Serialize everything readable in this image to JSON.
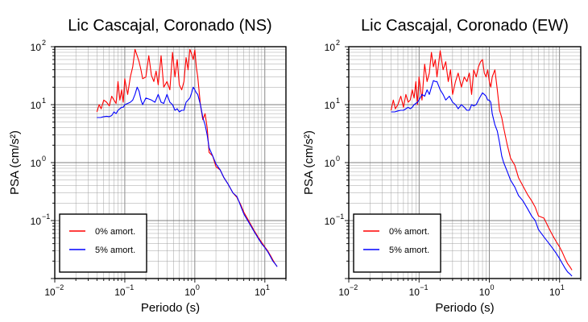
{
  "chart_data": [
    {
      "type": "line",
      "title": "Lic Cascajal, Coronado (NS)",
      "xlabel": "Periodo (s)",
      "ylabel": "PSA (cm/s²)",
      "xscale": "log",
      "yscale": "log",
      "xlim": [
        0.01,
        20
      ],
      "ylim": [
        0.01,
        100
      ],
      "grid": true,
      "legend_position": "bottom-left",
      "xticks": [
        {
          "base": "10",
          "exp": "−2",
          "value": 0.01
        },
        {
          "base": "10",
          "exp": "−1",
          "value": 0.1
        },
        {
          "base": "10",
          "exp": "0",
          "value": 1
        },
        {
          "base": "10",
          "exp": "1",
          "value": 10
        }
      ],
      "yticks": [
        {
          "base": "10",
          "exp": "2",
          "value": 100
        },
        {
          "base": "10",
          "exp": "1",
          "value": 10
        },
        {
          "base": "10",
          "exp": "0",
          "value": 1
        },
        {
          "base": "10",
          "exp": "−1",
          "value": 0.1
        }
      ],
      "series": [
        {
          "name": "0% amort.",
          "color": "#ff0000",
          "x": [
            0.04,
            0.043,
            0.046,
            0.05,
            0.055,
            0.06,
            0.065,
            0.07,
            0.075,
            0.08,
            0.085,
            0.09,
            0.095,
            0.1,
            0.11,
            0.12,
            0.13,
            0.14,
            0.15,
            0.16,
            0.17,
            0.18,
            0.2,
            0.22,
            0.24,
            0.26,
            0.28,
            0.3,
            0.33,
            0.36,
            0.4,
            0.44,
            0.48,
            0.52,
            0.56,
            0.6,
            0.65,
            0.7,
            0.75,
            0.8,
            0.85,
            0.9,
            0.95,
            1.0,
            1.05,
            1.1,
            1.2,
            1.3,
            1.4,
            1.5,
            1.6,
            1.8,
            2.0,
            2.3,
            2.6,
            3.0,
            3.5,
            4.0,
            4.5,
            5.0,
            6.0,
            7.0,
            8.0,
            9.0,
            10.0,
            11.0,
            12.0,
            13.0,
            14.0,
            15.0
          ],
          "y": [
            7.5,
            10,
            8.5,
            12,
            11,
            9.5,
            14,
            12,
            10.5,
            25,
            12,
            18,
            11,
            28,
            15,
            30,
            45,
            90,
            70,
            55,
            40,
            28,
            30,
            70,
            32,
            25,
            38,
            22,
            70,
            20,
            25,
            18,
            80,
            30,
            60,
            22,
            18,
            25,
            65,
            40,
            90,
            75,
            60,
            88,
            45,
            30,
            10,
            5.5,
            7,
            4,
            1.5,
            1.3,
            0.85,
            0.75,
            0.55,
            0.42,
            0.3,
            0.25,
            0.19,
            0.14,
            0.095,
            0.068,
            0.052,
            0.042,
            0.035,
            0.03,
            0.025,
            0.021,
            0.018,
            0.016
          ]
        },
        {
          "name": "5% amort.",
          "color": "#0000ff",
          "x": [
            0.04,
            0.045,
            0.05,
            0.055,
            0.06,
            0.065,
            0.07,
            0.075,
            0.08,
            0.085,
            0.09,
            0.095,
            0.1,
            0.11,
            0.12,
            0.13,
            0.14,
            0.15,
            0.16,
            0.17,
            0.18,
            0.2,
            0.22,
            0.24,
            0.27,
            0.3,
            0.33,
            0.36,
            0.4,
            0.44,
            0.48,
            0.52,
            0.56,
            0.6,
            0.65,
            0.7,
            0.75,
            0.8,
            0.85,
            0.9,
            0.95,
            1.0,
            1.05,
            1.1,
            1.2,
            1.3,
            1.4,
            1.5,
            1.6,
            1.8,
            2.0,
            2.3,
            2.6,
            3.0,
            3.5,
            4.0,
            4.5,
            5.0,
            6.0,
            7.0,
            8.0,
            9.0,
            10.0,
            11.0,
            12.0,
            13.0,
            14.0,
            15.0
          ],
          "y": [
            6,
            6,
            6.2,
            6.3,
            6.2,
            6.5,
            7.5,
            7,
            8,
            8.5,
            9,
            9,
            10,
            10.5,
            11,
            12,
            15,
            20,
            17,
            12,
            10,
            13,
            12.5,
            12,
            11,
            15,
            11,
            10.5,
            15,
            11,
            10,
            8,
            8.5,
            7.5,
            8,
            8,
            11,
            12,
            13,
            16,
            20,
            18,
            16,
            15,
            10,
            6,
            4.5,
            3,
            1.8,
            1.3,
            0.95,
            0.75,
            0.55,
            0.42,
            0.3,
            0.26,
            0.18,
            0.13,
            0.09,
            0.065,
            0.05,
            0.04,
            0.034,
            0.029,
            0.024,
            0.02,
            0.018,
            0.016
          ]
        }
      ]
    },
    {
      "type": "line",
      "title": "Lic Cascajal, Coronado (EW)",
      "xlabel": "Periodo (s)",
      "ylabel": "PSA (cm/s²)",
      "xscale": "log",
      "yscale": "log",
      "xlim": [
        0.01,
        20
      ],
      "ylim": [
        0.01,
        100
      ],
      "grid": true,
      "legend_position": "bottom-left",
      "xticks": [
        {
          "base": "10",
          "exp": "−2",
          "value": 0.01
        },
        {
          "base": "10",
          "exp": "−1",
          "value": 0.1
        },
        {
          "base": "10",
          "exp": "0",
          "value": 1
        },
        {
          "base": "10",
          "exp": "1",
          "value": 10
        }
      ],
      "yticks": [
        {
          "base": "10",
          "exp": "2",
          "value": 100
        },
        {
          "base": "10",
          "exp": "1",
          "value": 10
        },
        {
          "base": "10",
          "exp": "0",
          "value": 1
        },
        {
          "base": "10",
          "exp": "−1",
          "value": 0.1
        }
      ],
      "series": [
        {
          "name": "0% amort.",
          "color": "#ff0000",
          "x": [
            0.04,
            0.043,
            0.046,
            0.05,
            0.055,
            0.06,
            0.065,
            0.07,
            0.075,
            0.08,
            0.085,
            0.09,
            0.095,
            0.1,
            0.11,
            0.12,
            0.13,
            0.14,
            0.15,
            0.16,
            0.17,
            0.18,
            0.2,
            0.22,
            0.24,
            0.26,
            0.28,
            0.3,
            0.33,
            0.36,
            0.4,
            0.44,
            0.48,
            0.52,
            0.56,
            0.6,
            0.65,
            0.7,
            0.75,
            0.8,
            0.85,
            0.9,
            0.95,
            1.0,
            1.05,
            1.1,
            1.2,
            1.3,
            1.4,
            1.5,
            1.6,
            1.8,
            2.0,
            2.3,
            2.6,
            3.0,
            3.5,
            4.0,
            4.5,
            5.0,
            6.0,
            7.0,
            8.0,
            9.0,
            10.0,
            11.0,
            12.0,
            13.0,
            14.0,
            15.0
          ],
          "y": [
            8,
            12,
            8.5,
            10,
            14,
            9,
            15,
            11,
            12,
            18,
            13,
            25,
            10,
            30,
            12,
            50,
            25,
            35,
            80,
            45,
            60,
            30,
            85,
            40,
            55,
            25,
            40,
            15,
            25,
            35,
            20,
            30,
            25,
            35,
            15,
            40,
            30,
            45,
            55,
            60,
            35,
            30,
            40,
            25,
            20,
            30,
            40,
            18,
            8,
            6,
            4,
            2,
            1.2,
            0.9,
            0.55,
            0.4,
            0.28,
            0.22,
            0.17,
            0.12,
            0.11,
            0.075,
            0.055,
            0.043,
            0.035,
            0.028,
            0.022,
            0.018,
            0.016,
            0.014
          ]
        },
        {
          "name": "5% amort.",
          "color": "#0000ff",
          "x": [
            0.04,
            0.045,
            0.05,
            0.055,
            0.06,
            0.065,
            0.07,
            0.075,
            0.08,
            0.085,
            0.09,
            0.095,
            0.1,
            0.11,
            0.12,
            0.13,
            0.14,
            0.15,
            0.16,
            0.17,
            0.18,
            0.2,
            0.22,
            0.24,
            0.27,
            0.3,
            0.33,
            0.36,
            0.4,
            0.44,
            0.48,
            0.52,
            0.56,
            0.6,
            0.65,
            0.7,
            0.75,
            0.8,
            0.85,
            0.9,
            0.95,
            1.0,
            1.05,
            1.1,
            1.2,
            1.3,
            1.4,
            1.5,
            1.6,
            1.8,
            2.0,
            2.3,
            2.6,
            3.0,
            3.5,
            4.0,
            4.5,
            5.0,
            6.0,
            7.0,
            8.0,
            9.0,
            10.0,
            11.0,
            12.0,
            13.0,
            14.0,
            15.0
          ],
          "y": [
            7.5,
            7.5,
            7.8,
            8,
            8,
            8.5,
            9,
            8.5,
            9,
            10,
            10.5,
            11,
            12,
            15,
            14,
            18,
            15,
            20,
            26,
            25,
            25,
            18,
            15,
            12,
            14,
            11,
            10,
            8.5,
            10,
            9,
            8,
            8,
            10,
            9.5,
            10,
            12,
            14,
            16,
            15,
            14,
            12,
            12,
            11,
            7,
            4.5,
            3.5,
            2.2,
            1.3,
            1.0,
            0.7,
            0.5,
            0.38,
            0.27,
            0.22,
            0.16,
            0.12,
            0.1,
            0.07,
            0.052,
            0.041,
            0.033,
            0.027,
            0.022,
            0.018,
            0.015,
            0.013,
            0.012,
            0.011
          ]
        }
      ]
    }
  ]
}
